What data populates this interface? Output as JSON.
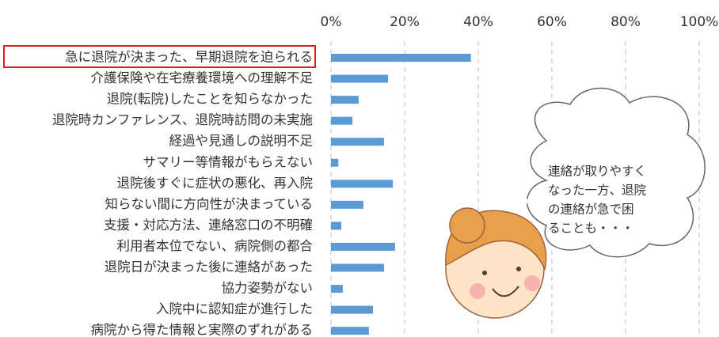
{
  "chart_data": {
    "type": "bar",
    "orientation": "horizontal",
    "categories": [
      "急に退院が決まった、早期退院を迫られる",
      "介護保険や在宅療養環境への理解不足",
      "退院(転院)したことを知らなかった",
      "退院時カンファレンス、退院時訪問の未実施",
      "経過や見通しの説明不足",
      "サマリー等情報がもらえない",
      "退院後すぐに症状の悪化、再入院",
      "知らない間に方向性が決まっている",
      "支援・対応方法、連絡窓口の不明確",
      "利用者本位でない、病院側の都合",
      "退院日が決まった後に連絡があった",
      "協力姿勢がない",
      "入院中に認知症が進行した",
      "病院から得た情報と実際のずれがある"
    ],
    "values": [
      38,
      15.5,
      7.5,
      5.8,
      14.4,
      2,
      16.8,
      8.8,
      2.8,
      17.4,
      14.4,
      3.2,
      11.4,
      10.3
    ],
    "color": "#5b9bd5",
    "xlim": [
      0,
      100
    ],
    "xticks": [
      {
        "value": 0,
        "label": "0%"
      },
      {
        "value": 20,
        "label": "20%"
      },
      {
        "value": 40,
        "label": "40%"
      },
      {
        "value": 60,
        "label": "60%"
      },
      {
        "value": 80,
        "label": "80%"
      },
      {
        "value": 100,
        "label": "100%"
      }
    ],
    "grid": true,
    "annotation": [
      "連絡が取りやすく",
      "なった一方、退院",
      "の連絡が急で困",
      "ることも・・・"
    ]
  }
}
